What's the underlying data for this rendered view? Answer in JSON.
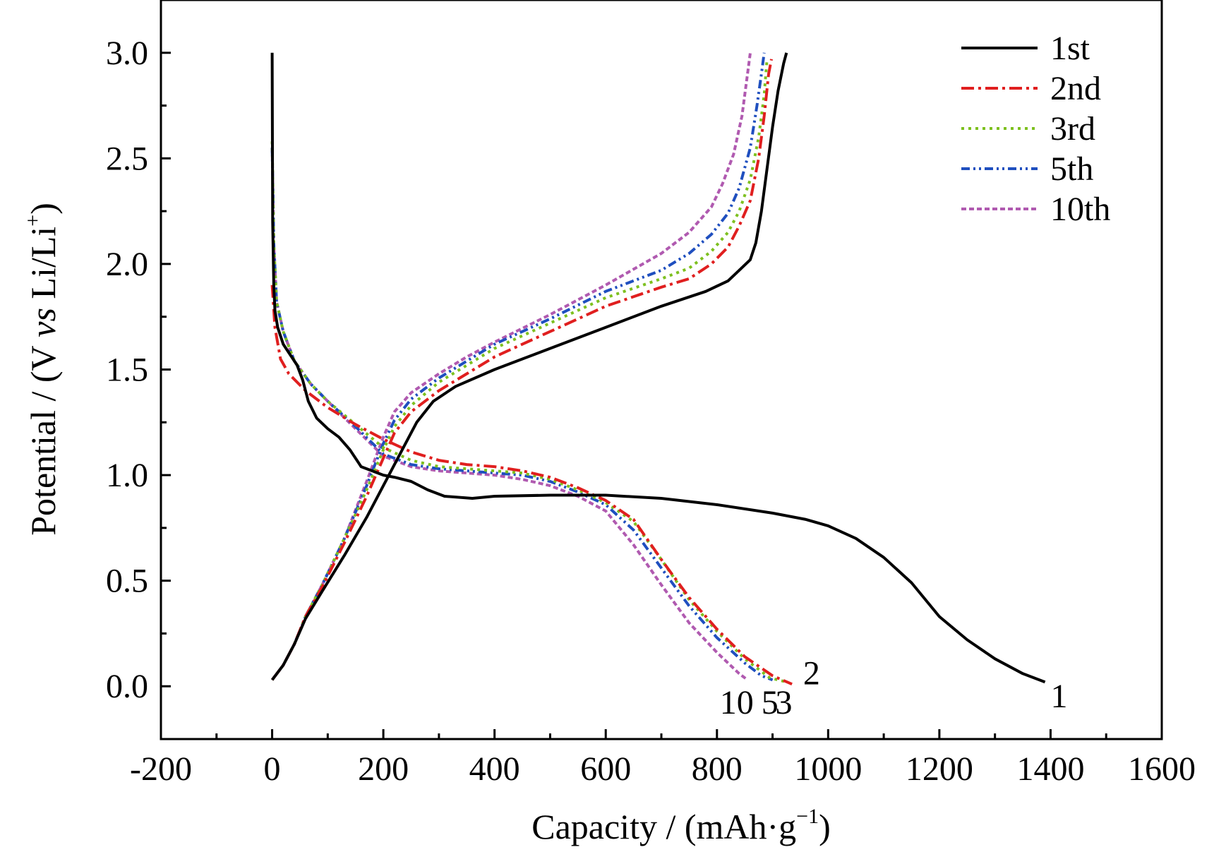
{
  "chart_data": {
    "type": "line",
    "xlabel": "Capacity / (mAh·g⁻¹)",
    "xlabel_parts": {
      "pre": "Capacity / (mAh·g",
      "sup": "−1",
      "post": ")"
    },
    "ylabel": "Potential / (V vs Li/Li⁺)",
    "ylabel_parts": {
      "pre": "Potential  / (V ",
      "ital": "vs",
      "mid": " Li/Li",
      "sup": "+",
      "post": ")"
    },
    "xlim": [
      -200,
      1600
    ],
    "ylim": [
      -0.25,
      3.25
    ],
    "x_ticks": [
      -200,
      0,
      200,
      400,
      600,
      800,
      1000,
      1200,
      1400,
      1600
    ],
    "y_ticks": [
      "0.0",
      "0.5",
      "1.0",
      "1.5",
      "2.0",
      "2.5",
      "3.0"
    ],
    "legend_position": "top-right",
    "series": [
      {
        "name": "1st",
        "color": "#000000",
        "dash": "solid",
        "discharge": [
          [
            0,
            3.0
          ],
          [
            1,
            2.2
          ],
          [
            3,
            1.9
          ],
          [
            5,
            1.78
          ],
          [
            10,
            1.7
          ],
          [
            20,
            1.62
          ],
          [
            30,
            1.58
          ],
          [
            45,
            1.52
          ],
          [
            55,
            1.45
          ],
          [
            65,
            1.35
          ],
          [
            80,
            1.27
          ],
          [
            100,
            1.22
          ],
          [
            120,
            1.18
          ],
          [
            140,
            1.12
          ],
          [
            160,
            1.04
          ],
          [
            180,
            1.02
          ],
          [
            200,
            1.0
          ],
          [
            220,
            0.99
          ],
          [
            250,
            0.97
          ],
          [
            280,
            0.93
          ],
          [
            310,
            0.9
          ],
          [
            360,
            0.89
          ],
          [
            400,
            0.9
          ],
          [
            500,
            0.905
          ],
          [
            600,
            0.905
          ],
          [
            700,
            0.89
          ],
          [
            800,
            0.86
          ],
          [
            900,
            0.82
          ],
          [
            960,
            0.79
          ],
          [
            1000,
            0.76
          ],
          [
            1050,
            0.7
          ],
          [
            1100,
            0.61
          ],
          [
            1150,
            0.49
          ],
          [
            1200,
            0.33
          ],
          [
            1250,
            0.22
          ],
          [
            1300,
            0.13
          ],
          [
            1350,
            0.06
          ],
          [
            1390,
            0.02
          ]
        ],
        "charge": [
          [
            0,
            0.03
          ],
          [
            20,
            0.1
          ],
          [
            40,
            0.2
          ],
          [
            60,
            0.32
          ],
          [
            90,
            0.45
          ],
          [
            130,
            0.62
          ],
          [
            170,
            0.8
          ],
          [
            210,
            1.0
          ],
          [
            240,
            1.15
          ],
          [
            260,
            1.25
          ],
          [
            290,
            1.35
          ],
          [
            330,
            1.42
          ],
          [
            400,
            1.5
          ],
          [
            500,
            1.6
          ],
          [
            600,
            1.7
          ],
          [
            700,
            1.8
          ],
          [
            780,
            1.87
          ],
          [
            820,
            1.92
          ],
          [
            840,
            1.97
          ],
          [
            860,
            2.02
          ],
          [
            870,
            2.1
          ],
          [
            880,
            2.25
          ],
          [
            890,
            2.45
          ],
          [
            900,
            2.65
          ],
          [
            910,
            2.82
          ],
          [
            920,
            2.95
          ],
          [
            925,
            3.0
          ]
        ]
      },
      {
        "name": "2nd",
        "color": "#e01f1f",
        "dash": "dashdot",
        "discharge": [
          [
            0,
            1.9
          ],
          [
            5,
            1.7
          ],
          [
            15,
            1.55
          ],
          [
            30,
            1.48
          ],
          [
            60,
            1.4
          ],
          [
            100,
            1.32
          ],
          [
            150,
            1.24
          ],
          [
            200,
            1.17
          ],
          [
            250,
            1.11
          ],
          [
            300,
            1.07
          ],
          [
            350,
            1.05
          ],
          [
            400,
            1.04
          ],
          [
            450,
            1.02
          ],
          [
            500,
            0.99
          ],
          [
            550,
            0.94
          ],
          [
            600,
            0.88
          ],
          [
            650,
            0.79
          ],
          [
            700,
            0.6
          ],
          [
            750,
            0.42
          ],
          [
            800,
            0.27
          ],
          [
            850,
            0.14
          ],
          [
            900,
            0.05
          ],
          [
            935,
            0.01
          ]
        ],
        "charge": [
          [
            0,
            0.03
          ],
          [
            20,
            0.1
          ],
          [
            40,
            0.2
          ],
          [
            60,
            0.33
          ],
          [
            90,
            0.47
          ],
          [
            130,
            0.68
          ],
          [
            170,
            0.9
          ],
          [
            200,
            1.08
          ],
          [
            220,
            1.2
          ],
          [
            250,
            1.3
          ],
          [
            300,
            1.4
          ],
          [
            350,
            1.48
          ],
          [
            400,
            1.56
          ],
          [
            500,
            1.68
          ],
          [
            600,
            1.8
          ],
          [
            700,
            1.89
          ],
          [
            750,
            1.93
          ],
          [
            790,
            2.0
          ],
          [
            820,
            2.08
          ],
          [
            840,
            2.18
          ],
          [
            860,
            2.3
          ],
          [
            875,
            2.5
          ],
          [
            885,
            2.7
          ],
          [
            893,
            2.9
          ],
          [
            898,
            2.97
          ]
        ]
      },
      {
        "name": "3rd",
        "color": "#7dc01f",
        "dash": "dot",
        "discharge": [
          [
            0,
            2.58
          ],
          [
            3,
            2.1
          ],
          [
            8,
            1.82
          ],
          [
            20,
            1.68
          ],
          [
            40,
            1.54
          ],
          [
            70,
            1.43
          ],
          [
            100,
            1.35
          ],
          [
            150,
            1.24
          ],
          [
            200,
            1.13
          ],
          [
            250,
            1.07
          ],
          [
            300,
            1.04
          ],
          [
            350,
            1.03
          ],
          [
            400,
            1.02
          ],
          [
            450,
            1.01
          ],
          [
            500,
            0.98
          ],
          [
            550,
            0.93
          ],
          [
            600,
            0.87
          ],
          [
            650,
            0.78
          ],
          [
            700,
            0.6
          ],
          [
            750,
            0.41
          ],
          [
            800,
            0.26
          ],
          [
            850,
            0.13
          ],
          [
            895,
            0.04
          ],
          [
            925,
            0.02
          ]
        ],
        "charge": [
          [
            0,
            0.03
          ],
          [
            20,
            0.1
          ],
          [
            40,
            0.2
          ],
          [
            60,
            0.33
          ],
          [
            90,
            0.48
          ],
          [
            130,
            0.7
          ],
          [
            170,
            0.93
          ],
          [
            200,
            1.12
          ],
          [
            220,
            1.23
          ],
          [
            250,
            1.33
          ],
          [
            300,
            1.44
          ],
          [
            350,
            1.52
          ],
          [
            400,
            1.6
          ],
          [
            500,
            1.72
          ],
          [
            600,
            1.84
          ],
          [
            700,
            1.93
          ],
          [
            750,
            1.98
          ],
          [
            790,
            2.06
          ],
          [
            820,
            2.15
          ],
          [
            840,
            2.25
          ],
          [
            860,
            2.4
          ],
          [
            875,
            2.6
          ],
          [
            885,
            2.8
          ],
          [
            890,
            2.97
          ]
        ]
      },
      {
        "name": "5th",
        "color": "#1f4fbf",
        "dash": "dashdotdot",
        "discharge": [
          [
            0,
            2.55
          ],
          [
            3,
            2.1
          ],
          [
            8,
            1.82
          ],
          [
            20,
            1.68
          ],
          [
            40,
            1.54
          ],
          [
            70,
            1.43
          ],
          [
            100,
            1.35
          ],
          [
            150,
            1.23
          ],
          [
            200,
            1.1
          ],
          [
            250,
            1.05
          ],
          [
            300,
            1.03
          ],
          [
            350,
            1.02
          ],
          [
            400,
            1.01
          ],
          [
            450,
            1.0
          ],
          [
            500,
            0.97
          ],
          [
            550,
            0.92
          ],
          [
            600,
            0.86
          ],
          [
            650,
            0.74
          ],
          [
            700,
            0.56
          ],
          [
            750,
            0.38
          ],
          [
            800,
            0.23
          ],
          [
            850,
            0.11
          ],
          [
            880,
            0.05
          ],
          [
            900,
            0.03
          ]
        ],
        "charge": [
          [
            0,
            0.03
          ],
          [
            20,
            0.1
          ],
          [
            40,
            0.2
          ],
          [
            60,
            0.33
          ],
          [
            90,
            0.48
          ],
          [
            130,
            0.7
          ],
          [
            170,
            0.95
          ],
          [
            200,
            1.15
          ],
          [
            220,
            1.26
          ],
          [
            250,
            1.36
          ],
          [
            300,
            1.46
          ],
          [
            350,
            1.54
          ],
          [
            400,
            1.62
          ],
          [
            500,
            1.74
          ],
          [
            600,
            1.87
          ],
          [
            700,
            1.97
          ],
          [
            750,
            2.05
          ],
          [
            790,
            2.14
          ],
          [
            820,
            2.24
          ],
          [
            840,
            2.36
          ],
          [
            860,
            2.55
          ],
          [
            872,
            2.75
          ],
          [
            880,
            2.9
          ],
          [
            885,
            3.0
          ]
        ]
      },
      {
        "name": "10th",
        "color": "#b05ab0",
        "dash": "dash",
        "discharge": [
          [
            0,
            2.55
          ],
          [
            3,
            2.1
          ],
          [
            8,
            1.82
          ],
          [
            20,
            1.68
          ],
          [
            40,
            1.54
          ],
          [
            70,
            1.43
          ],
          [
            100,
            1.35
          ],
          [
            150,
            1.22
          ],
          [
            200,
            1.09
          ],
          [
            250,
            1.04
          ],
          [
            300,
            1.02
          ],
          [
            350,
            1.01
          ],
          [
            400,
            1.0
          ],
          [
            450,
            0.98
          ],
          [
            500,
            0.95
          ],
          [
            550,
            0.9
          ],
          [
            600,
            0.83
          ],
          [
            650,
            0.67
          ],
          [
            700,
            0.48
          ],
          [
            750,
            0.3
          ],
          [
            800,
            0.16
          ],
          [
            840,
            0.06
          ],
          [
            855,
            0.03
          ]
        ],
        "charge": [
          [
            0,
            0.03
          ],
          [
            20,
            0.1
          ],
          [
            40,
            0.2
          ],
          [
            60,
            0.33
          ],
          [
            90,
            0.48
          ],
          [
            130,
            0.7
          ],
          [
            170,
            0.97
          ],
          [
            200,
            1.18
          ],
          [
            220,
            1.3
          ],
          [
            250,
            1.39
          ],
          [
            300,
            1.48
          ],
          [
            350,
            1.56
          ],
          [
            400,
            1.63
          ],
          [
            500,
            1.76
          ],
          [
            600,
            1.9
          ],
          [
            700,
            2.05
          ],
          [
            750,
            2.15
          ],
          [
            790,
            2.27
          ],
          [
            810,
            2.38
          ],
          [
            830,
            2.52
          ],
          [
            845,
            2.7
          ],
          [
            855,
            2.9
          ],
          [
            860,
            3.0
          ]
        ]
      }
    ],
    "annotations": [
      {
        "text": "1",
        "x": 1400,
        "y": -0.04
      },
      {
        "text": "2",
        "x": 955,
        "y": 0.07
      },
      {
        "text": "10",
        "x": 805,
        "y": -0.07
      },
      {
        "text": "5",
        "x": 880,
        "y": -0.07
      },
      {
        "text": "3",
        "x": 905,
        "y": -0.07
      }
    ]
  }
}
